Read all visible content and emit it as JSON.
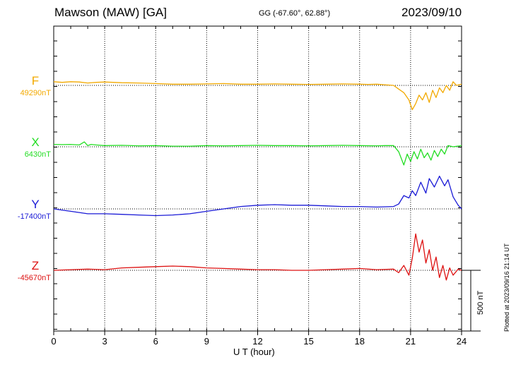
{
  "header": {
    "title": "Mawson (MAW)  [GA]",
    "coordinates": "GG (-67.60°,  62.88°)",
    "date": "2023/09/10"
  },
  "footer": {
    "plotted_note": "Plotted at 2023/09/16 21:14 UT",
    "scale_label": "500 nT"
  },
  "chart_data": {
    "type": "line",
    "xlabel": "U T (hour)",
    "xlim": [
      0,
      24
    ],
    "x_ticks": [
      "0",
      "3",
      "6",
      "9",
      "12",
      "15",
      "18",
      "21",
      "24"
    ],
    "grid": "dotted vertical at every 3 hours",
    "scale_bar_nT": 500,
    "series": [
      {
        "name": "F",
        "baseline_label": "49290nT",
        "baseline_nT": 49290,
        "color": "#f2a900",
        "x": [
          0,
          0.5,
          1,
          1.5,
          2,
          2.5,
          3,
          4,
          5,
          6,
          7,
          8,
          9,
          10,
          11,
          12,
          13,
          14,
          15,
          16,
          17,
          18,
          18.5,
          19,
          19.5,
          20,
          20.3,
          20.6,
          20.9,
          21.1,
          21.3,
          21.5,
          21.7,
          21.9,
          22.1,
          22.3,
          22.5,
          22.7,
          22.9,
          23.1,
          23.3,
          23.5,
          23.7,
          24
        ],
        "values": [
          30,
          25,
          30,
          28,
          20,
          25,
          28,
          22,
          20,
          15,
          10,
          10,
          12,
          15,
          10,
          10,
          12,
          10,
          8,
          10,
          12,
          10,
          8,
          10,
          5,
          0,
          -30,
          -60,
          -120,
          -200,
          -150,
          -80,
          -120,
          -60,
          -140,
          -40,
          -100,
          -20,
          -60,
          0,
          -40,
          30,
          0,
          10
        ]
      },
      {
        "name": "X",
        "baseline_label": "6430nT",
        "baseline_nT": 6430,
        "color": "#22dd22",
        "x": [
          0,
          0.5,
          1,
          1.5,
          1.8,
          2,
          2.2,
          2.5,
          3,
          4,
          5,
          6,
          7,
          8,
          9,
          10,
          11,
          12,
          13,
          14,
          15,
          16,
          17,
          18,
          19,
          19.5,
          20,
          20.3,
          20.6,
          20.8,
          21,
          21.2,
          21.4,
          21.6,
          21.8,
          22,
          22.2,
          22.4,
          22.6,
          22.8,
          23,
          23.2,
          23.5,
          24
        ],
        "values": [
          20,
          18,
          20,
          15,
          40,
          10,
          20,
          15,
          10,
          12,
          8,
          10,
          5,
          5,
          10,
          8,
          10,
          12,
          10,
          10,
          8,
          10,
          12,
          10,
          8,
          10,
          10,
          -40,
          -150,
          -60,
          -120,
          -40,
          -100,
          -20,
          -90,
          -50,
          -110,
          -30,
          -80,
          -20,
          -60,
          10,
          0,
          10
        ]
      },
      {
        "name": "Y",
        "baseline_label": "-17400nT",
        "baseline_nT": -17400,
        "color": "#1a1ad6",
        "x": [
          0,
          1,
          2,
          3,
          4,
          5,
          6,
          7,
          8,
          9,
          10,
          11,
          12,
          13,
          14,
          15,
          16,
          17,
          18,
          19,
          20,
          20.3,
          20.6,
          20.9,
          21.1,
          21.3,
          21.6,
          21.9,
          22.1,
          22.4,
          22.7,
          23,
          23.2,
          23.5,
          23.8,
          24
        ],
        "values": [
          0,
          -20,
          -40,
          -40,
          -45,
          -50,
          -55,
          -50,
          -40,
          -20,
          0,
          20,
          30,
          35,
          30,
          30,
          25,
          20,
          20,
          15,
          20,
          40,
          110,
          90,
          150,
          110,
          220,
          130,
          250,
          180,
          270,
          190,
          240,
          100,
          30,
          0
        ]
      },
      {
        "name": "Z",
        "baseline_label": "-45670nT",
        "baseline_nT": -45670,
        "color": "#dd1111",
        "x": [
          0,
          1,
          2,
          3,
          4,
          5,
          6,
          7,
          8,
          9,
          10,
          11,
          12,
          13,
          14,
          15,
          16,
          17,
          18,
          19,
          20,
          20.3,
          20.6,
          20.9,
          21.1,
          21.3,
          21.5,
          21.7,
          21.9,
          22.1,
          22.3,
          22.5,
          22.7,
          22.9,
          23.1,
          23.3,
          23.5,
          23.8,
          24
        ],
        "values": [
          0,
          5,
          10,
          5,
          20,
          25,
          30,
          35,
          30,
          20,
          15,
          10,
          5,
          5,
          0,
          0,
          5,
          10,
          15,
          5,
          10,
          -20,
          40,
          -40,
          100,
          300,
          150,
          250,
          60,
          170,
          0,
          110,
          -60,
          40,
          -80,
          20,
          -40,
          10,
          0
        ]
      }
    ]
  }
}
